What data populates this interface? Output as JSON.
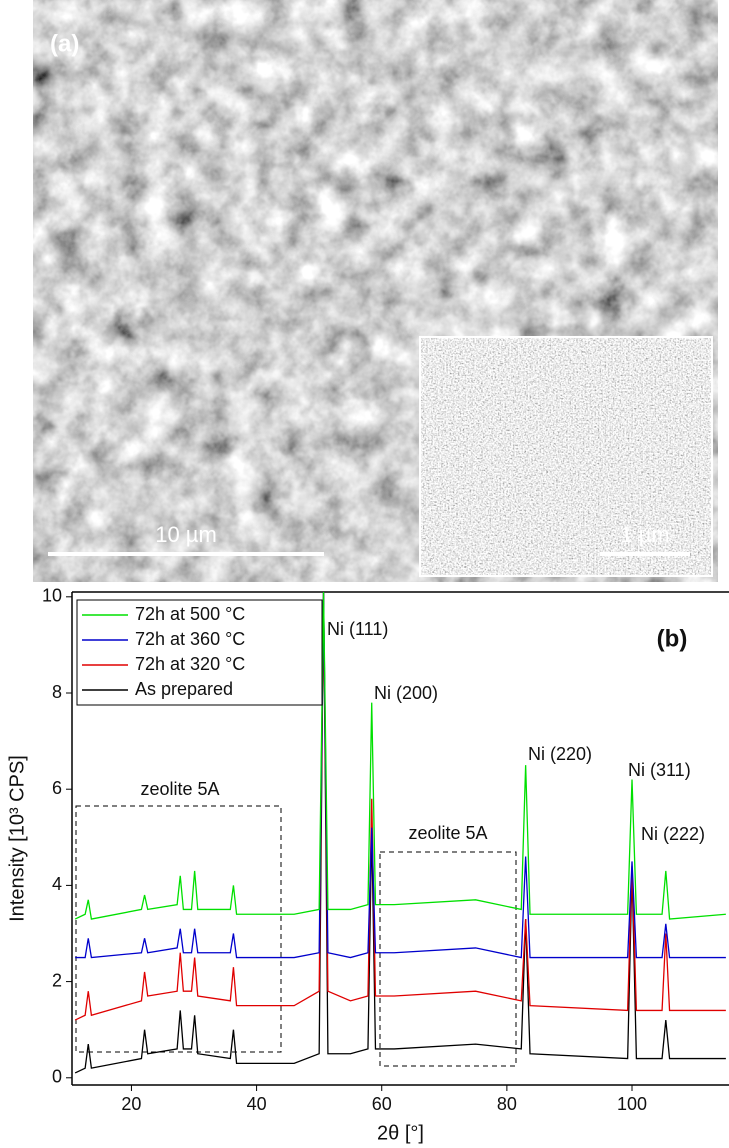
{
  "image": {
    "panel_label": "(a)",
    "scale_bar": "10 µm",
    "inset_scale_bar": "1 µm"
  },
  "chart_data": {
    "type": "line",
    "panel_label": "(b)",
    "x_label": "2θ [°]",
    "y_label": "Intensity [10³ CPS]",
    "xlim": [
      10.5,
      115.5
    ],
    "xticks": [
      20,
      40,
      60,
      80,
      100
    ],
    "ylim": [
      -0.15,
      10.1
    ],
    "yticks": [
      0,
      2,
      4,
      6,
      8,
      10
    ],
    "legend": "upper left",
    "x": [
      11,
      12.6,
      13.1,
      13.6,
      21.6,
      22.1,
      22.6,
      27.3,
      27.8,
      28.3,
      29.6,
      30.1,
      30.6,
      35.8,
      36.3,
      36.8,
      46,
      50.0,
      50.7,
      51.4,
      55,
      57.8,
      58.4,
      59.0,
      62,
      75,
      82.3,
      83.0,
      83.7,
      99.3,
      100.0,
      100.7,
      104.8,
      105.4,
      106.0,
      115
    ],
    "series": [
      {
        "name": "72h at 500 °C",
        "color": "#00e000",
        "values": [
          3.3,
          3.4,
          3.7,
          3.3,
          3.5,
          3.8,
          3.5,
          3.6,
          4.2,
          3.5,
          3.5,
          4.3,
          3.5,
          3.5,
          4.0,
          3.4,
          3.4,
          3.5,
          10.1,
          3.5,
          3.5,
          3.6,
          7.8,
          3.6,
          3.6,
          3.7,
          3.5,
          6.5,
          3.4,
          3.4,
          6.2,
          3.4,
          3.4,
          4.3,
          3.3,
          3.4
        ]
      },
      {
        "name": "72h at 360 °C",
        "color": "#0000cc",
        "values": [
          2.5,
          2.5,
          2.9,
          2.5,
          2.6,
          2.9,
          2.6,
          2.7,
          3.1,
          2.6,
          2.6,
          3.1,
          2.6,
          2.6,
          3.0,
          2.5,
          2.5,
          2.6,
          10.1,
          2.6,
          2.5,
          2.6,
          5.2,
          2.6,
          2.6,
          2.7,
          2.5,
          4.6,
          2.5,
          2.5,
          4.5,
          2.5,
          2.5,
          3.2,
          2.5,
          2.5
        ]
      },
      {
        "name": "72h at 320 °C",
        "color": "#e00000",
        "values": [
          1.2,
          1.3,
          1.8,
          1.3,
          1.6,
          2.2,
          1.7,
          1.8,
          2.6,
          1.8,
          1.8,
          2.5,
          1.7,
          1.6,
          2.3,
          1.5,
          1.5,
          1.8,
          10.1,
          1.8,
          1.6,
          1.7,
          5.8,
          1.7,
          1.7,
          1.8,
          1.6,
          3.3,
          1.5,
          1.4,
          4.4,
          1.4,
          1.4,
          3.0,
          1.4,
          1.4
        ]
      },
      {
        "name": "As prepared",
        "color": "#000000",
        "values": [
          0.1,
          0.2,
          0.7,
          0.2,
          0.4,
          1.0,
          0.5,
          0.6,
          1.4,
          0.6,
          0.6,
          1.3,
          0.5,
          0.4,
          1.0,
          0.3,
          0.3,
          0.5,
          10.1,
          0.5,
          0.5,
          0.6,
          5.2,
          0.6,
          0.6,
          0.7,
          0.6,
          3.3,
          0.5,
          0.4,
          4.3,
          0.4,
          0.4,
          1.2,
          0.4,
          0.4
        ]
      }
    ],
    "annotations": [
      "Ni (111)",
      "Ni (200)",
      "Ni (220)",
      "Ni (311)",
      "Ni (222)",
      "zeolite 5A",
      "zeolite 5A"
    ]
  }
}
